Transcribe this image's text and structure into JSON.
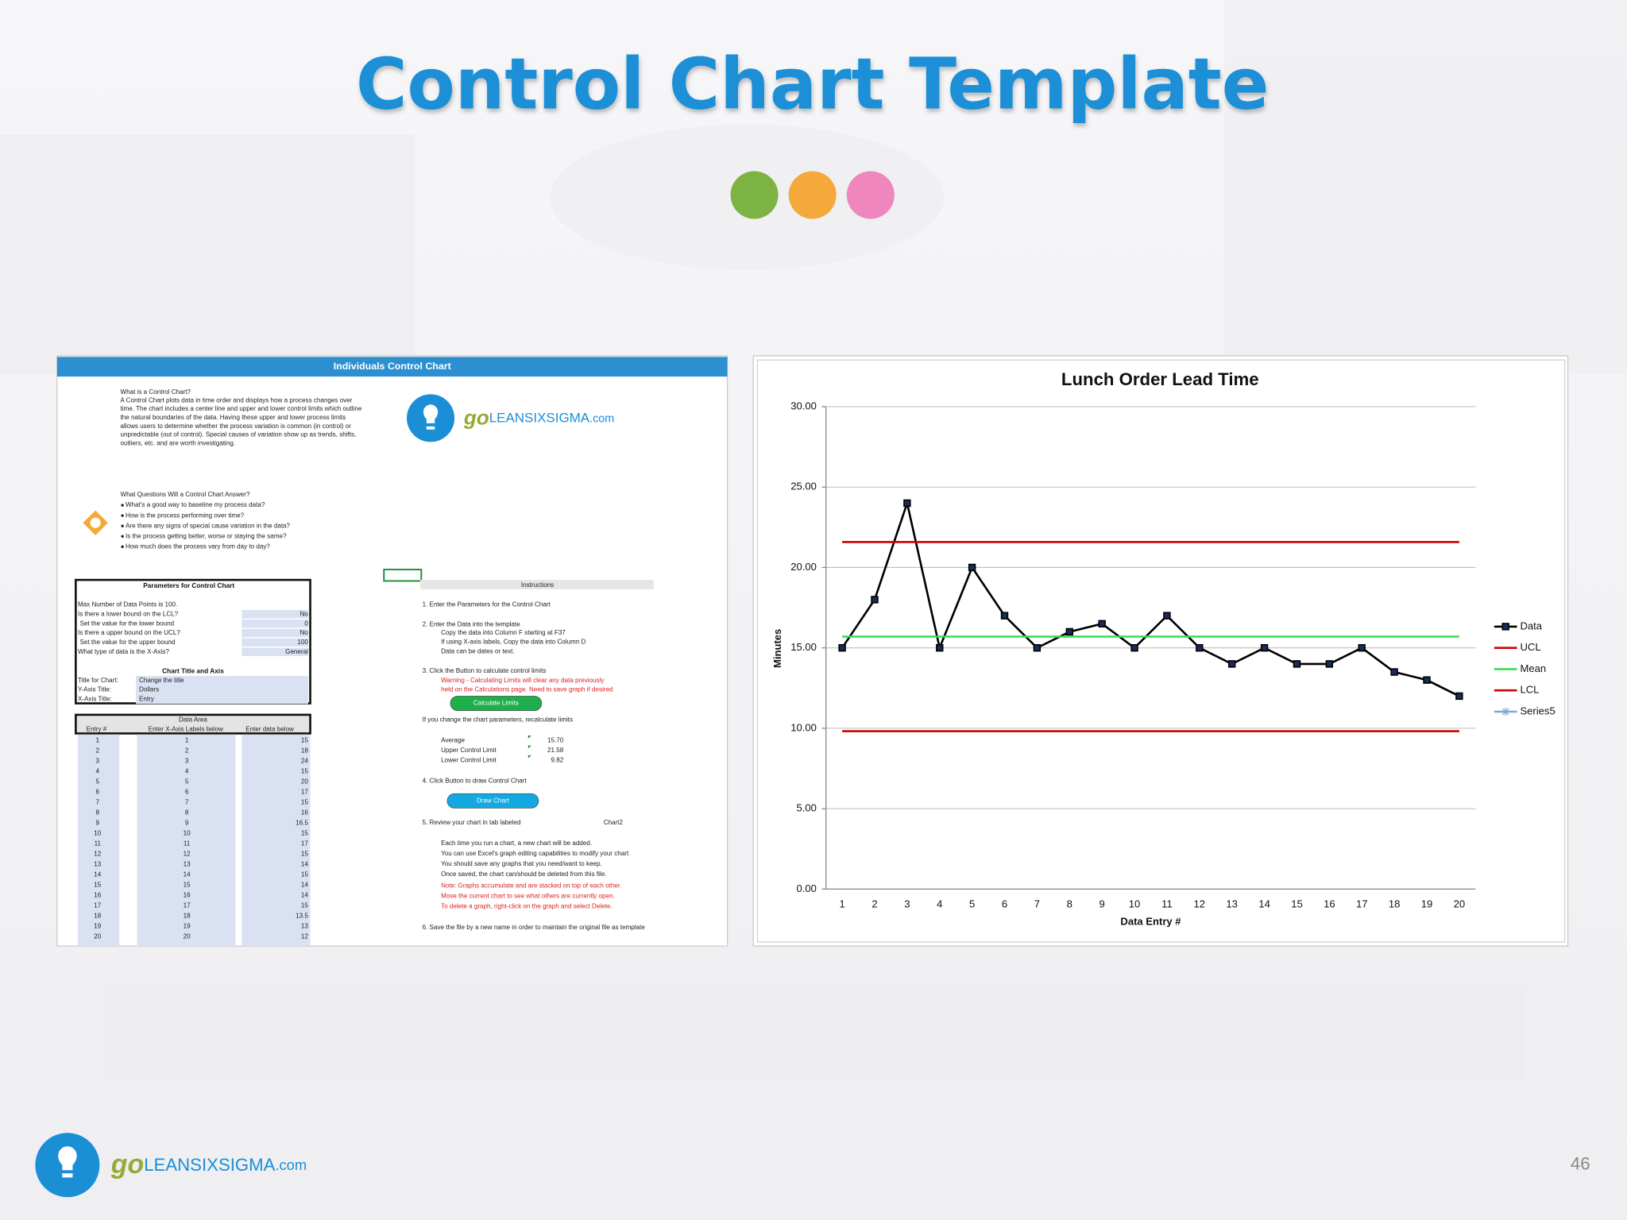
{
  "slide": {
    "title": "Control Chart Template",
    "page_number": "46"
  },
  "logo": {
    "go": "go",
    "brand": "LEANSIXSIGMA",
    "domain": ".com"
  },
  "spreadsheet": {
    "header": "Individuals Control Chart",
    "intro": {
      "heading": "What is a Control Chart?",
      "lines": [
        "A Control Chart plots data in time order and displays how a process changes over",
        "time. The chart includes a center line and upper and lower control limits which outline",
        "the natural boundaries of the data. Having these upper and lower process limits",
        "allows users to determine whether the process variation is common (in control) or",
        "unpredictable (out of control). Special causes of variation show up as trends, shifts,",
        "outliers, etc. and are worth investigating."
      ]
    },
    "questions": {
      "heading": "What Questions Will a Control Chart Answer?",
      "bullets": [
        "What's a good way to baseline my process data?",
        "How is the process performing over time?",
        "Are there any signs of special cause variation in the data?",
        "Is the process getting better, worse or staying the same?",
        "How much does the process vary from day to day?"
      ]
    },
    "parameters": {
      "title": "Parameters for Control Chart",
      "note": "Max Number of Data Points is 100.",
      "rows": [
        [
          "Is there a lower bound on the LCL?",
          "No"
        ],
        [
          "Set the value for the lower bound",
          "0"
        ],
        [
          "Is there a upper bound on the UCL?",
          "No"
        ],
        [
          "Set the value for the upper bound",
          "100"
        ],
        [
          "What type of data is the X-Axis?",
          "General"
        ]
      ],
      "axis_title": "Chart Title and Axis",
      "axis_rows": [
        [
          "Title for Chart:",
          "Change the title"
        ],
        [
          "Y-Axis Title:",
          "Dollars"
        ],
        [
          "X-Axis Title:",
          "Entry"
        ]
      ]
    },
    "data_area": {
      "title": "Data Area",
      "headers": [
        "Entry #",
        "Enter X-Axis Labels below",
        "Enter data below"
      ],
      "rows": [
        [
          1,
          1,
          15
        ],
        [
          2,
          2,
          18
        ],
        [
          3,
          3,
          24
        ],
        [
          4,
          4,
          15
        ],
        [
          5,
          5,
          20
        ],
        [
          6,
          6,
          17
        ],
        [
          7,
          7,
          15
        ],
        [
          8,
          8,
          16
        ],
        [
          9,
          9,
          16.5
        ],
        [
          10,
          10,
          15
        ],
        [
          11,
          11,
          17
        ],
        [
          12,
          12,
          15
        ],
        [
          13,
          13,
          14
        ],
        [
          14,
          14,
          15
        ],
        [
          15,
          15,
          14
        ],
        [
          16,
          16,
          14
        ],
        [
          17,
          17,
          15
        ],
        [
          18,
          18,
          13.5
        ],
        [
          19,
          19,
          13
        ],
        [
          20,
          20,
          12
        ]
      ]
    },
    "instructions": {
      "title": "Instructions",
      "lines": [
        {
          "text": "1. Enter the Parameters for the Control Chart"
        },
        {
          "text": "2. Enter the Data into the template"
        },
        {
          "text": "Copy the data into Column F starting at F37"
        },
        {
          "text": "If using X-axis labels, Copy the data into Column D"
        },
        {
          "text": "Data can be dates or text."
        },
        {
          "text": "3. Click the Button to calculate control limits"
        },
        {
          "text": "Warning - Calculating Limits will clear any data previously",
          "color": "#e02020"
        },
        {
          "text": "held on the Calculations page.   Need to save graph if desired",
          "color": "#e02020"
        },
        {
          "text": "If you change the chart parameters, recalculate limits"
        },
        {
          "text": "4. Click Button to draw Control Chart"
        },
        {
          "text": "5. Review your chart in tab labeled"
        },
        {
          "text": "Each time you run a chart, a new chart will be added."
        },
        {
          "text": "You can use Excel's graph editing capabilities to modify your chart"
        },
        {
          "text": "You should save any graphs that you need/want to keep."
        },
        {
          "text": "Once saved, the chart can/should be deleted from this file."
        },
        {
          "text": "Note: Graphs accumulate and are stacked on top of each other.",
          "color": "#e02020"
        },
        {
          "text": "Move the current chart to see what others are currently open.",
          "color": "#e02020"
        },
        {
          "text": "To delete a graph, right-click on the graph and select Delete.",
          "color": "#e02020"
        },
        {
          "text": "6. Save the file by a new name in order to maintain the original file as template"
        }
      ],
      "buttons": [
        "Calculate Limits",
        "Draw Chart"
      ],
      "stats": [
        [
          "Average",
          "15.70"
        ],
        [
          "Upper Control Limit",
          "21.58"
        ],
        [
          "Lower Control Limit",
          "9.82"
        ]
      ],
      "tab_name": "Chart2"
    }
  },
  "chart_data": {
    "type": "line",
    "title": "Lunch Order Lead Time",
    "x_label": "Data Entry #",
    "y_label": "Minutes",
    "categories": [
      "1",
      "2",
      "3",
      "4",
      "5",
      "6",
      "7",
      "8",
      "9",
      "10",
      "11",
      "12",
      "13",
      "14",
      "15",
      "16",
      "17",
      "18",
      "19",
      "20"
    ],
    "series": [
      {
        "name": "Data",
        "color": "#000000",
        "marker": "square",
        "values": [
          15,
          18,
          24,
          15,
          20,
          17,
          15,
          16,
          16.5,
          15,
          17,
          15,
          14,
          15,
          14,
          14,
          15,
          13.5,
          13,
          12
        ]
      },
      {
        "name": "UCL",
        "color": "#cc0000",
        "values": [
          21.58,
          21.58,
          21.58,
          21.58,
          21.58,
          21.58,
          21.58,
          21.58,
          21.58,
          21.58,
          21.58,
          21.58,
          21.58,
          21.58,
          21.58,
          21.58,
          21.58,
          21.58,
          21.58,
          21.58
        ]
      },
      {
        "name": "Mean",
        "color": "#33dd55",
        "values": [
          15.7,
          15.7,
          15.7,
          15.7,
          15.7,
          15.7,
          15.7,
          15.7,
          15.7,
          15.7,
          15.7,
          15.7,
          15.7,
          15.7,
          15.7,
          15.7,
          15.7,
          15.7,
          15.7,
          15.7
        ]
      },
      {
        "name": "LCL",
        "color": "#cc0000",
        "values": [
          9.82,
          9.82,
          9.82,
          9.82,
          9.82,
          9.82,
          9.82,
          9.82,
          9.82,
          9.82,
          9.82,
          9.82,
          9.82,
          9.82,
          9.82,
          9.82,
          9.82,
          9.82,
          9.82,
          9.82
        ]
      },
      {
        "name": "Series5",
        "color": "#7da7d9",
        "marker": "star",
        "values": [
          null,
          null,
          null,
          null,
          null,
          null,
          null,
          null,
          null,
          null,
          null,
          null,
          null,
          null,
          null,
          null,
          null,
          null,
          null,
          null
        ]
      }
    ],
    "ylim": [
      0,
      30
    ],
    "yticks": [
      {
        "value": 0,
        "label": "0.00"
      },
      {
        "value": 5,
        "label": "5.00"
      },
      {
        "value": 10,
        "label": "10.00"
      },
      {
        "value": 15,
        "label": "15.00"
      },
      {
        "value": 20,
        "label": "20.00"
      },
      {
        "value": 25,
        "label": "25.00"
      },
      {
        "value": 30,
        "label": "30.00"
      }
    ],
    "grid": true,
    "legend": "right"
  }
}
